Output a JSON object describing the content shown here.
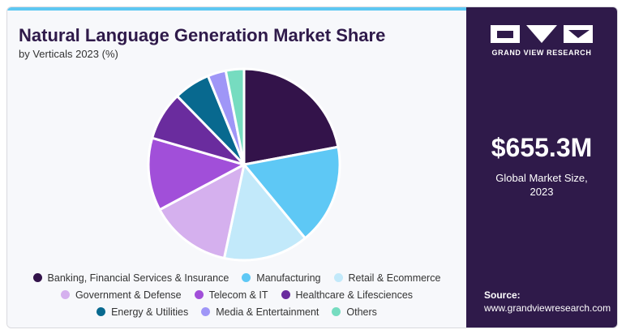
{
  "header": {
    "title": "Natural Language Generation Market Share",
    "subtitle": "by Verticals 2023 (%)"
  },
  "chart_data": {
    "type": "pie",
    "title": "Natural Language Generation Market Share",
    "subtitle": "by Verticals 2023 (%)",
    "legend_position": "bottom",
    "categories": [
      "Banking, Financial Services & Insurance",
      "Manufacturing",
      "Retail & Ecommerce",
      "Government & Defense",
      "Telecom & IT",
      "Healthcare & Lifesciences",
      "Energy & Utilities",
      "Media & Entertainment",
      "Others"
    ],
    "values": [
      21.5,
      16.5,
      14.0,
      13.5,
      12.0,
      8.0,
      6.0,
      3.0,
      3.0
    ],
    "colors": [
      "#33134a",
      "#5ec8f5",
      "#c2e9fa",
      "#d5b0ee",
      "#a14fd9",
      "#6a2c9e",
      "#08698f",
      "#9f96f7",
      "#76dcc0"
    ]
  },
  "sidebar": {
    "brand": "GRAND VIEW RESEARCH",
    "market_value": "$655.3M",
    "market_label_line1": "Global Market Size,",
    "market_label_line2": "2023",
    "source_label": "Source:",
    "source_url": "www.grandviewresearch.com"
  }
}
